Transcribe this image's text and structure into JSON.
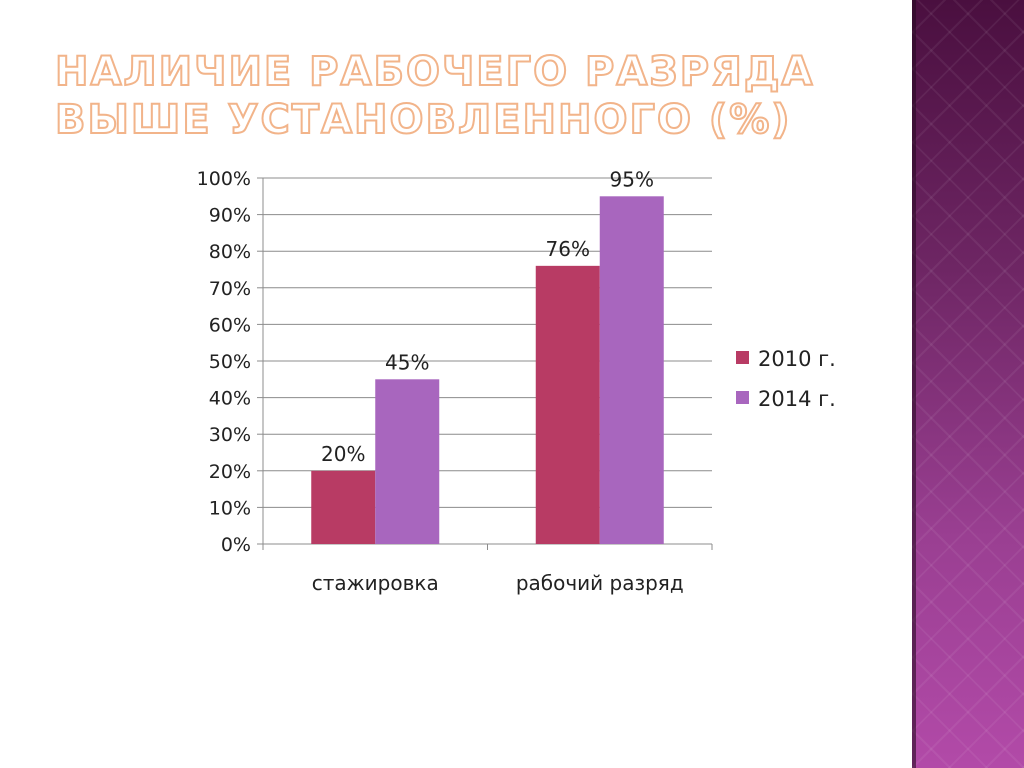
{
  "slide": {
    "title": "НАЛИЧИЕ РАБОЧЕГО РАЗРЯДА ВЫШЕ УСТАНОВЛЕННОГО (%)"
  },
  "colors": {
    "series_2010": "#b83b64",
    "series_2014": "#a866be",
    "grid": "#8c8c8c",
    "band_top": "#4a0f3f",
    "band_bottom": "#b24aa8",
    "title_outline": "#f2b48a"
  },
  "chart_data": {
    "type": "bar",
    "title": "",
    "xlabel": "",
    "ylabel": "",
    "categories": [
      "стажировка",
      "рабочий разряд"
    ],
    "series": [
      {
        "name": "2010 г.",
        "values": [
          20,
          76
        ],
        "labels": [
          "20%",
          "76%"
        ]
      },
      {
        "name": "2014 г.",
        "values": [
          45,
          95
        ],
        "labels": [
          "45%",
          "95%"
        ]
      }
    ],
    "ylim": [
      0,
      100
    ],
    "yticks": [
      0,
      10,
      20,
      30,
      40,
      50,
      60,
      70,
      80,
      90,
      100
    ],
    "ytick_labels": [
      "0%",
      "10%",
      "20%",
      "30%",
      "40%",
      "50%",
      "60%",
      "70%",
      "80%",
      "90%",
      "100%"
    ],
    "grid": true,
    "legend_position": "right"
  }
}
